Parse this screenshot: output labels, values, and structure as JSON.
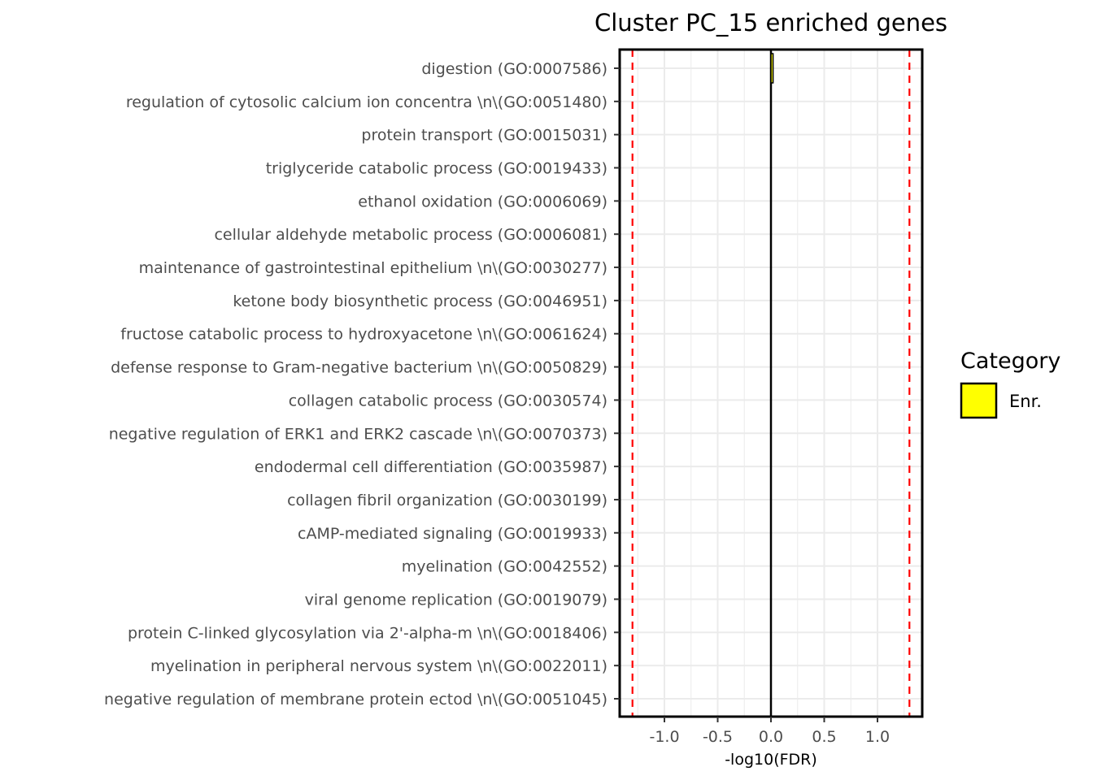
{
  "chart_data": {
    "type": "bar",
    "orientation": "horizontal",
    "title": "Cluster PC_15 enriched genes",
    "xlabel": "-log10(FDR)",
    "ylabel": "",
    "xlim": [
      -1.42,
      1.42
    ],
    "xticks": [
      "-1.0",
      "-0.5",
      "0.0",
      "0.5",
      "1.0"
    ],
    "xtick_values": [
      -1.0,
      -0.5,
      0.0,
      0.5,
      1.0
    ],
    "grid": true,
    "threshold_lines": [
      -1.3,
      1.3
    ],
    "threshold_color": "#ff0000",
    "categories": [
      "digestion (GO:0007586)",
      "regulation of cytosolic calcium ion concentra \\n\\(GO:0051480)",
      "protein transport (GO:0015031)",
      "triglyceride catabolic process (GO:0019433)",
      "ethanol oxidation (GO:0006069)",
      "cellular aldehyde metabolic process (GO:0006081)",
      "maintenance of gastrointestinal epithelium  \\n\\(GO:0030277)",
      "ketone body biosynthetic process (GO:0046951)",
      "fructose catabolic process to hydroxyacetone  \\n\\(GO:0061624)",
      "defense response to Gram-negative bacterium  \\n\\(GO:0050829)",
      "collagen catabolic process (GO:0030574)",
      "negative regulation of ERK1 and ERK2 cascade  \\n\\(GO:0070373)",
      "endodermal cell differentiation (GO:0035987)",
      "collagen fibril organization (GO:0030199)",
      "cAMP-mediated signaling (GO:0019933)",
      "myelination (GO:0042552)",
      "viral genome replication (GO:0019079)",
      "protein C-linked glycosylation via 2'-alpha-m \\n\\(GO:0018406)",
      "myelination in peripheral nervous system  \\n\\(GO:0022011)",
      "negative regulation of membrane protein ectod \\n\\(GO:0051045)"
    ],
    "series": [
      {
        "name": "Enr.",
        "color": "#ffff00",
        "values": [
          0.02,
          0,
          0,
          0,
          0,
          0,
          0,
          0,
          0,
          0,
          0,
          0,
          0,
          0,
          0,
          0,
          0,
          0,
          0,
          0
        ]
      }
    ],
    "legend": {
      "title": "Category",
      "position": "right",
      "items": [
        {
          "label": "Enr.",
          "color": "#ffff00"
        }
      ]
    }
  }
}
